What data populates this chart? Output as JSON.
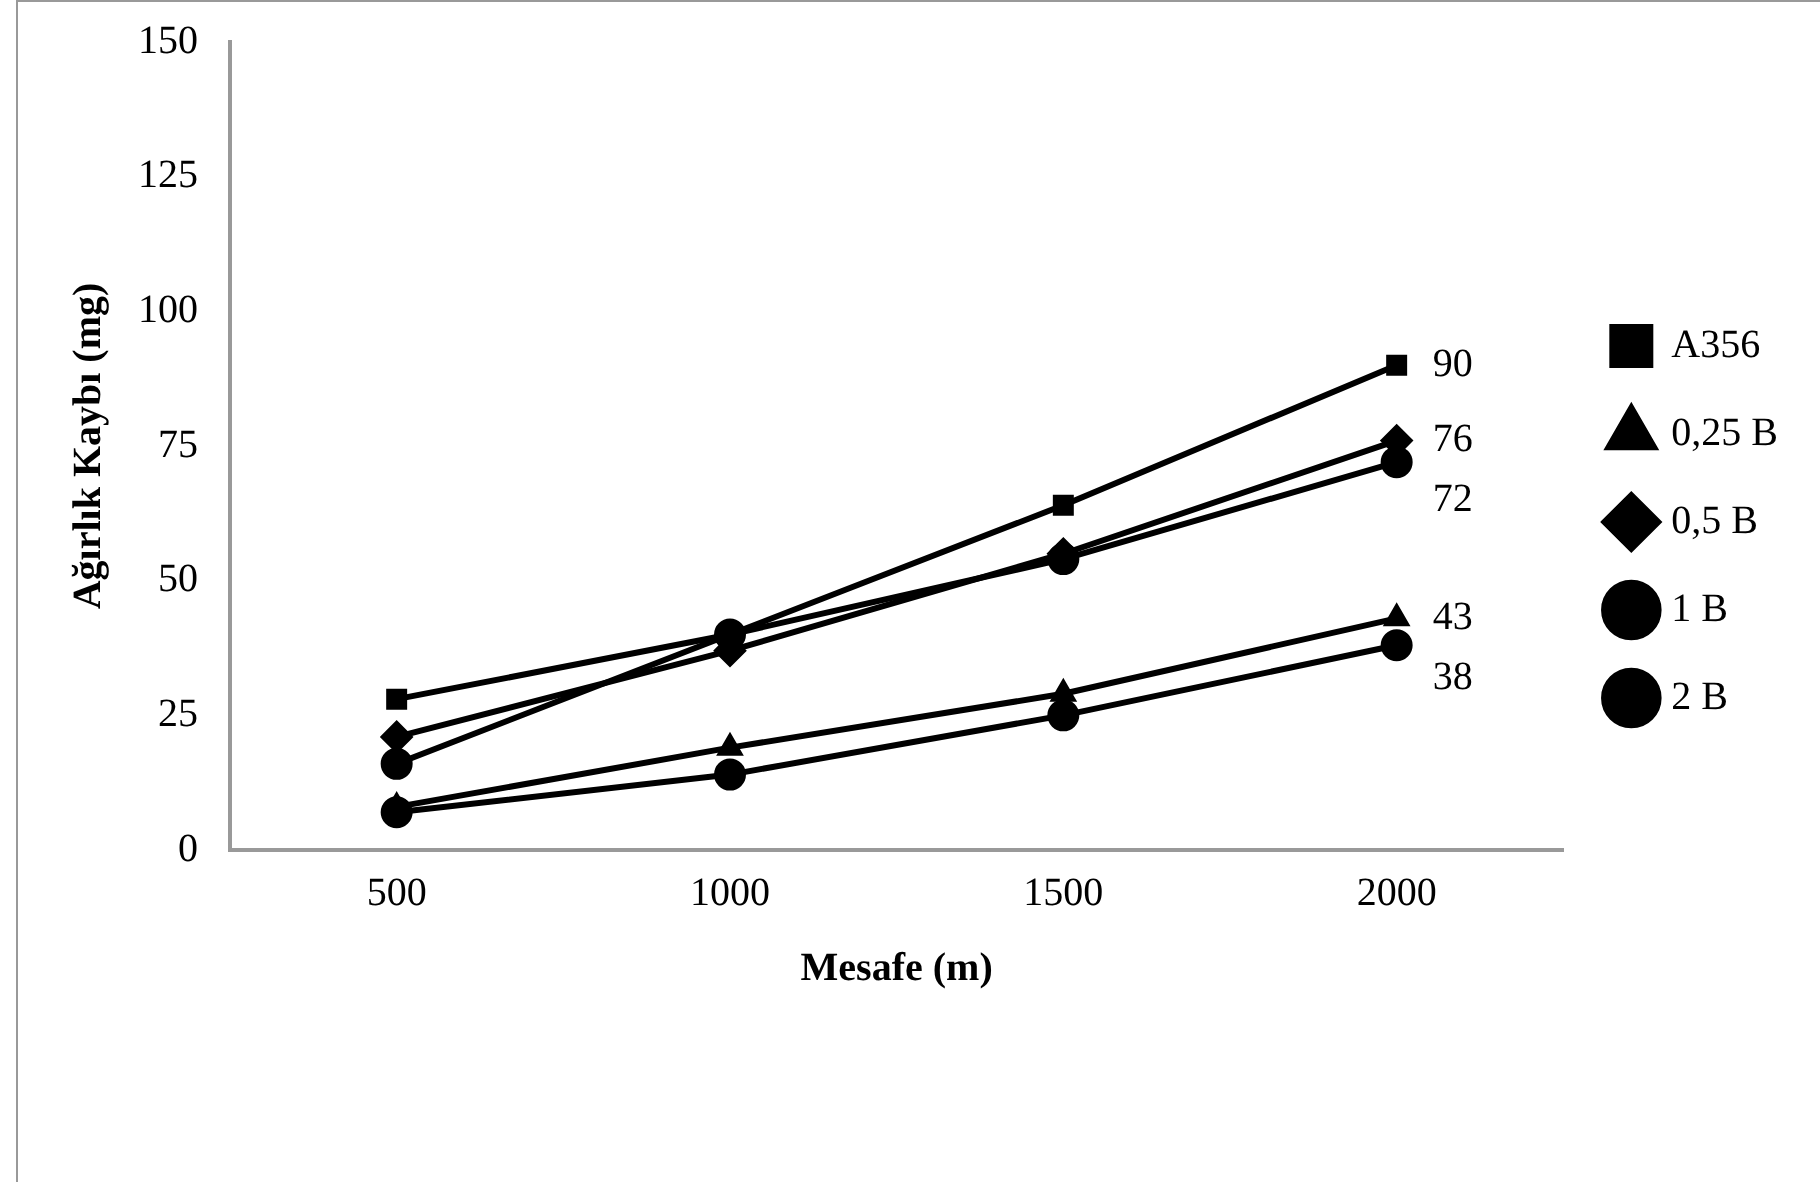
{
  "chart_data": {
    "type": "line",
    "xlabel": "Mesafe (m)",
    "ylabel": "Ağırlık Kaybı (mg)",
    "categories": [
      "500",
      "1000",
      "1500",
      "2000"
    ],
    "ylim": [
      0,
      150
    ],
    "yticks": [
      0,
      25,
      50,
      75,
      100,
      125,
      150
    ],
    "grid": false,
    "legend": "right",
    "line_style": "solid",
    "series": [
      {
        "name": "A356",
        "color": "#000000",
        "marker": "square",
        "values": [
          28,
          40,
          64,
          90
        ],
        "value_labels": [
          null,
          null,
          null,
          "90"
        ]
      },
      {
        "name": "0,25 B",
        "color": "#000000",
        "marker": "triangle",
        "values": [
          8,
          19,
          29,
          43
        ],
        "value_labels": [
          null,
          null,
          null,
          "43"
        ]
      },
      {
        "name": "0,5 B",
        "color": "#000000",
        "marker": "diamond",
        "values": [
          21,
          37,
          55,
          76
        ],
        "value_labels": [
          null,
          null,
          null,
          "76"
        ]
      },
      {
        "name": "1 B",
        "color": "#000000",
        "marker": "circle",
        "values": [
          7,
          14,
          25,
          38
        ],
        "value_labels": [
          null,
          null,
          null,
          "38"
        ]
      },
      {
        "name": "2 B",
        "color": "#000000",
        "marker": "circle",
        "values": [
          16,
          40,
          54,
          72
        ],
        "value_labels": [
          null,
          null,
          null,
          "72"
        ]
      }
    ]
  }
}
